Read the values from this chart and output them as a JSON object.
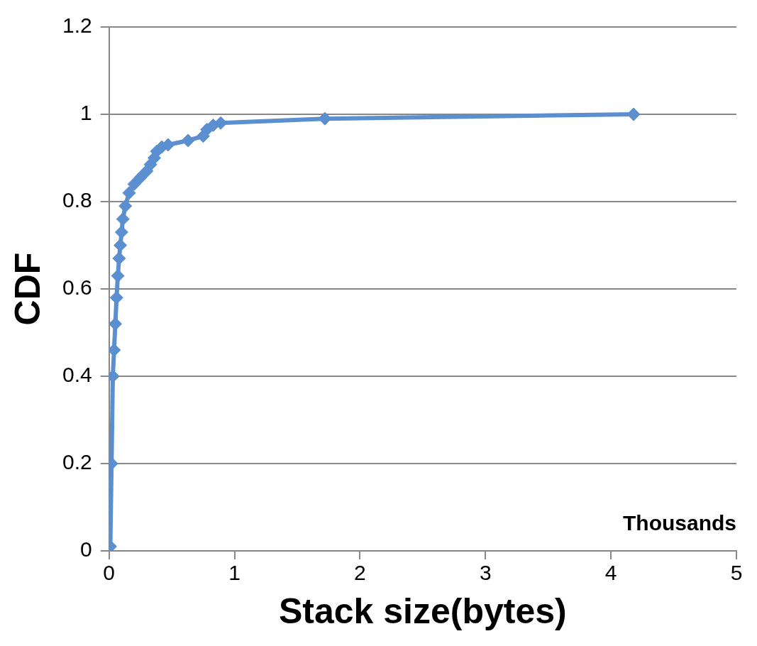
{
  "chart_data": {
    "type": "line",
    "xlabel": "Stack size(bytes)",
    "ylabel": "CDF",
    "xlim": [
      0,
      5
    ],
    "xticks": [
      0,
      1,
      2,
      3,
      4,
      5
    ],
    "ylim": [
      0,
      1.2
    ],
    "yticks": [
      0,
      0.2,
      0.4,
      0.6,
      0.8,
      1,
      1.2
    ],
    "grid": "y",
    "legend": false,
    "marker": "diamond",
    "line_style": "solid",
    "annotations": [
      "Thousands"
    ],
    "series": [
      {
        "color": "#5b8fd0",
        "x": [
          0.01,
          0.02,
          0.03,
          0.04,
          0.05,
          0.06,
          0.07,
          0.08,
          0.09,
          0.1,
          0.11,
          0.13,
          0.16,
          0.2,
          0.25,
          0.3,
          0.33,
          0.36,
          0.38,
          0.42,
          0.47,
          0.63,
          0.75,
          0.78,
          0.83,
          0.89,
          1.72,
          4.18
        ],
        "values": [
          0.01,
          0.2,
          0.4,
          0.46,
          0.52,
          0.58,
          0.63,
          0.67,
          0.7,
          0.73,
          0.76,
          0.79,
          0.82,
          0.84,
          0.855,
          0.87,
          0.885,
          0.9,
          0.915,
          0.925,
          0.93,
          0.94,
          0.95,
          0.965,
          0.975,
          0.98,
          0.99,
          1.0
        ]
      }
    ]
  }
}
